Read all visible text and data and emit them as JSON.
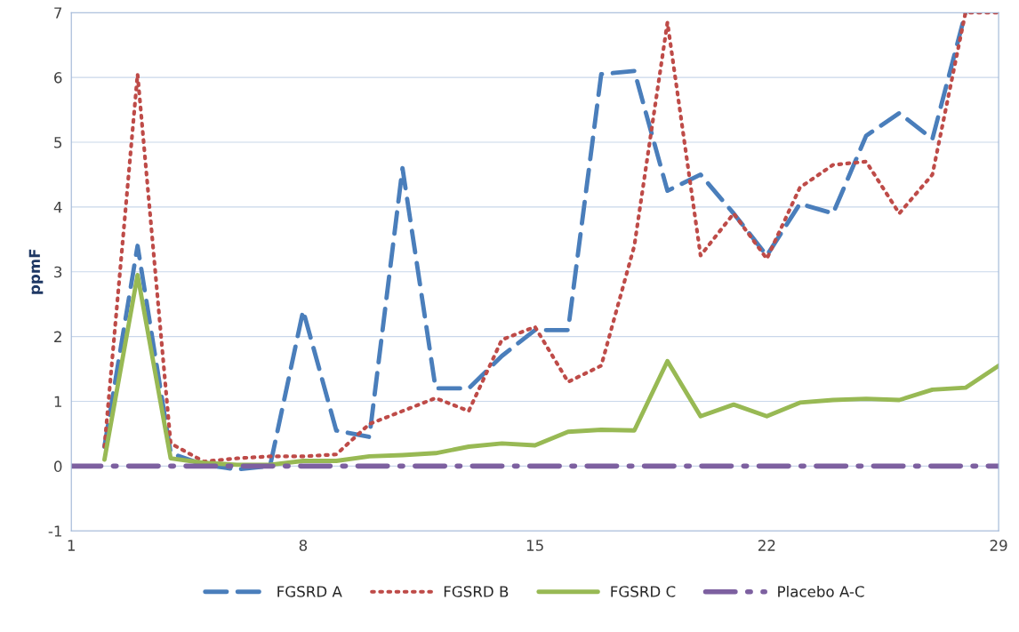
{
  "chart_data": {
    "type": "line",
    "ylabel": "ppmF",
    "x": [
      1,
      2,
      3,
      4,
      5,
      6,
      7,
      8,
      9,
      10,
      11,
      12,
      13,
      14,
      15,
      16,
      17,
      18,
      19,
      20,
      21,
      22,
      23,
      24,
      25,
      26,
      27,
      28,
      29
    ],
    "series": [
      {
        "name": "FGSRD A",
        "color": "#4a7ebb",
        "line_style": "dashed",
        "values": [
          null,
          0.3,
          3.4,
          0.2,
          0.02,
          -0.05,
          0.0,
          2.4,
          0.55,
          0.45,
          4.6,
          1.2,
          1.2,
          1.7,
          2.1,
          2.1,
          6.05,
          6.1,
          4.25,
          4.5,
          3.9,
          3.25,
          4.05,
          3.9,
          5.1,
          5.45,
          5.05,
          7.0,
          null
        ]
      },
      {
        "name": "FGSRD B",
        "color": "#be4b48",
        "line_style": "dotted",
        "values": [
          null,
          0.3,
          6.05,
          0.35,
          0.07,
          0.12,
          0.15,
          0.15,
          0.18,
          0.65,
          0.85,
          1.05,
          0.85,
          1.95,
          2.15,
          1.3,
          1.55,
          3.4,
          6.85,
          3.25,
          3.9,
          3.2,
          4.3,
          4.65,
          4.7,
          3.9,
          4.5,
          7.0,
          7.0
        ]
      },
      {
        "name": "FGSRD C",
        "color": "#98b954",
        "line_style": "solid",
        "values": [
          null,
          0.1,
          2.95,
          0.12,
          0.05,
          0.02,
          0.02,
          0.08,
          0.08,
          0.15,
          0.17,
          0.2,
          0.3,
          0.35,
          0.32,
          0.53,
          0.56,
          0.55,
          1.62,
          0.77,
          0.95,
          0.77,
          0.98,
          1.02,
          1.04,
          1.02,
          1.18,
          1.21,
          1.55
        ]
      },
      {
        "name": "Placebo A-C",
        "color": "#7d60a0",
        "line_style": "dashdot",
        "values": [
          0,
          0,
          0,
          0,
          0,
          0,
          0,
          0,
          0,
          0,
          0,
          0,
          0,
          0,
          0,
          0,
          0,
          0,
          0,
          0,
          0,
          0,
          0,
          0,
          0,
          0,
          0,
          0,
          0
        ]
      }
    ],
    "xlim": [
      1,
      29
    ],
    "xticks": [
      1,
      8,
      15,
      22,
      29
    ],
    "ylim": [
      -1,
      7
    ],
    "yticks": [
      -1,
      0,
      1,
      2,
      3,
      4,
      5,
      6,
      7
    ],
    "grid": "y",
    "legend": "bottom"
  }
}
